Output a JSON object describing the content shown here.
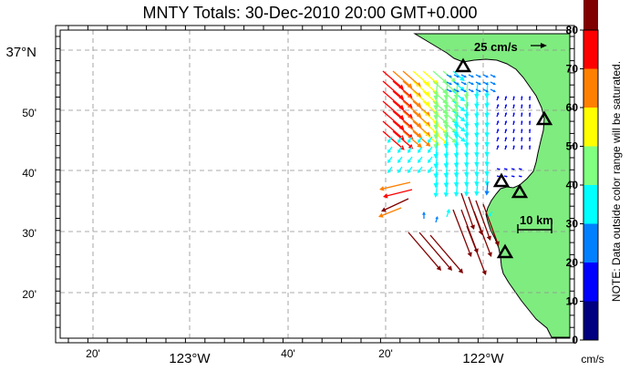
{
  "title": "MNTY Totals: 30-Dec-2010 20:00 GMT+0.000",
  "map": {
    "lat_labels": [
      "37°N",
      "50'",
      "40'",
      "30'",
      "20'"
    ],
    "lon_labels": [
      "20'",
      "123°W",
      "40'",
      "20'",
      "122°W"
    ],
    "scale_vector_label": "25 cm/s",
    "scale_bar_label": "10 km",
    "land_color": "#7fec7f",
    "ocean_color": "#ffffff",
    "site_marker": "triangle-icon"
  },
  "colorbar": {
    "ticks": [
      "80",
      "70",
      "60",
      "50",
      "40",
      "30",
      "20",
      "10",
      "0"
    ],
    "colors": [
      "#000080",
      "#0000ff",
      "#0080ff",
      "#00ffff",
      "#80ff80",
      "#ffff00",
      "#ff8000",
      "#ff0000",
      "#800000"
    ],
    "unit": "cm/s",
    "note": "NOTE: Data outside color range will be saturated."
  }
}
